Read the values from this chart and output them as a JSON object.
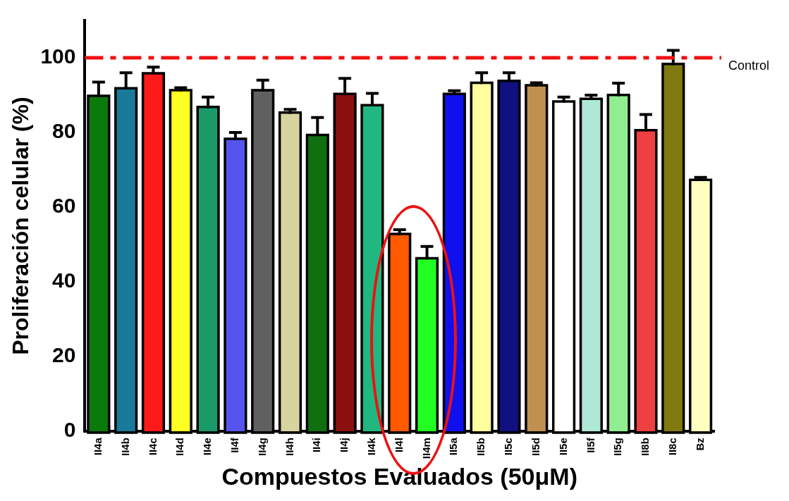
{
  "chart_data": {
    "type": "bar",
    "xlabel": "Compuestos Evaluados (50μM)",
    "ylabel": "Proliferación celular (%)",
    "categories": [
      "II4a",
      "II4b",
      "II4c",
      "II4d",
      "II4e",
      "II4f",
      "II4g",
      "II4h",
      "II4i",
      "II4j",
      "II4k",
      "II4l",
      "II4m",
      "II5a",
      "II5b",
      "II5c",
      "II5d",
      "II5e",
      "II5f",
      "II5g",
      "II8b",
      "II8c",
      "Bz"
    ],
    "values": [
      89.5,
      91.5,
      95.5,
      91,
      86.5,
      78,
      91,
      85,
      79,
      90,
      87,
      52.5,
      46,
      90,
      93,
      93.5,
      92.3,
      88,
      88.7,
      89.7,
      80.3,
      98,
      67
    ],
    "errors": [
      [
        89.5,
        93.5
      ],
      [
        91.5,
        96
      ],
      [
        95.5,
        97.5
      ],
      [
        91,
        92
      ],
      [
        86.5,
        89.5
      ],
      [
        78,
        80
      ],
      [
        91,
        94
      ],
      [
        85,
        86.2
      ],
      [
        79,
        84
      ],
      [
        90,
        94.5
      ],
      [
        87,
        90.5
      ],
      [
        52.5,
        54
      ],
      [
        46,
        49.5
      ],
      [
        90,
        91.2
      ],
      [
        93,
        96
      ],
      [
        93.5,
        96
      ],
      [
        92.3,
        93.3
      ],
      [
        88,
        89.5
      ],
      [
        88.7,
        90
      ],
      [
        89.7,
        93.2
      ],
      [
        80.3,
        84.8
      ],
      [
        98,
        102
      ],
      [
        67,
        68
      ]
    ],
    "colors": [
      "#0a7a0a",
      "#1a7a9a",
      "#ff1a1a",
      "#ffff22",
      "#1a9a6a",
      "#5555ee",
      "#606060",
      "#d8d4a0",
      "#107010",
      "#8a1010",
      "#20b880",
      "#ff5a00",
      "#22ff22",
      "#1010ee",
      "#ffffa0",
      "#101080",
      "#c09050",
      "#ffffff",
      "#b0e8d8",
      "#90ee90",
      "#ee4040",
      "#807a10",
      "#ffffc0"
    ],
    "ylim": [
      0,
      110
    ],
    "yticks": [
      0,
      20,
      40,
      60,
      80,
      100
    ],
    "grid": false,
    "legend": false,
    "ref_lines": [
      {
        "axis": "y",
        "value": 100,
        "label": "Control",
        "color": "#ee1111",
        "line_style": "dashed"
      }
    ]
  }
}
